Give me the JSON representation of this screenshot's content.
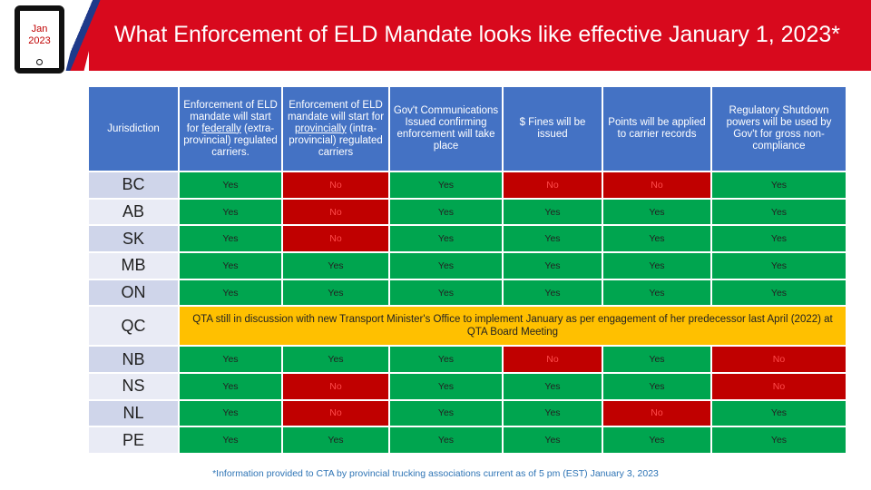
{
  "badge": {
    "month": "Jan",
    "year": "2023"
  },
  "title": "What Enforcement of ELD Mandate looks like effective January 1, 2023*",
  "colors": {
    "header": "#4472c4",
    "yes": "#00a54f",
    "no": "#c00000",
    "note": "#ffc000",
    "banner": "#d8091d"
  },
  "headers": {
    "jurisdiction": "Jurisdiction",
    "federal": {
      "pre": "Enforcement of ELD mandate will start for ",
      "emph": "federally",
      "post": " (extra-provincial) regulated carriers."
    },
    "provincial": {
      "pre": "Enforcement of ELD mandate will start for ",
      "emph": "provincially",
      "post": " (intra-provincial) regulated carriers"
    },
    "comms": "Gov't Communications Issued confirming enforcement will take place",
    "fines": "$ Fines will be issued",
    "points": "Points will be applied to carrier records",
    "shutdown": "Regulatory Shutdown powers will be used by Gov't for gross non-compliance"
  },
  "rows": [
    {
      "j": "BC",
      "c": [
        "Yes",
        "No",
        "Yes",
        "No",
        "No",
        "Yes"
      ]
    },
    {
      "j": "AB",
      "c": [
        "Yes",
        "No",
        "Yes",
        "Yes",
        "Yes",
        "Yes"
      ]
    },
    {
      "j": "SK",
      "c": [
        "Yes",
        "No",
        "Yes",
        "Yes",
        "Yes",
        "Yes"
      ]
    },
    {
      "j": "MB",
      "c": [
        "Yes",
        "Yes",
        "Yes",
        "Yes",
        "Yes",
        "Yes"
      ]
    },
    {
      "j": "ON",
      "c": [
        "Yes",
        "Yes",
        "Yes",
        "Yes",
        "Yes",
        "Yes"
      ]
    },
    {
      "j": "QC",
      "note": "QTA still in discussion with new Transport Minister's Office to implement January as per engagement of her predecessor last April (2022) at QTA Board Meeting"
    },
    {
      "j": "NB",
      "c": [
        "Yes",
        "Yes",
        "Yes",
        "No",
        "Yes",
        "No"
      ]
    },
    {
      "j": "NS",
      "c": [
        "Yes",
        "No",
        "Yes",
        "Yes",
        "Yes",
        "No"
      ]
    },
    {
      "j": "NL",
      "c": [
        "Yes",
        "No",
        "Yes",
        "Yes",
        "No",
        "Yes"
      ]
    },
    {
      "j": "PE",
      "c": [
        "Yes",
        "Yes",
        "Yes",
        "Yes",
        "Yes",
        "Yes"
      ]
    }
  ],
  "footnote": "*Information provided to CTA by provincial trucking associations current as of 5 pm (EST) January 3, 2023"
}
